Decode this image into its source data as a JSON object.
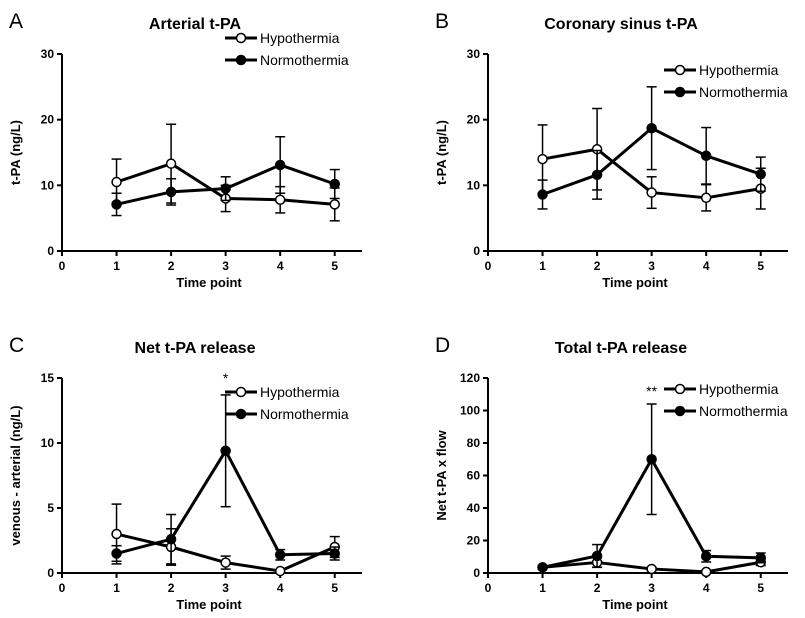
{
  "colors": {
    "hypothermia_marker": "#ffffff",
    "normothermia_marker": "#000000",
    "line": "#000000"
  },
  "legend_placement": "top-right",
  "chart_data": [
    {
      "panel": "A",
      "type": "line",
      "title": "Arterial t-PA",
      "xlabel": "Time point",
      "ylabel": "t-PA (ng/L)",
      "xlim": [
        0,
        5.5
      ],
      "ylim": [
        0,
        30
      ],
      "xticks": [
        0,
        1,
        2,
        3,
        4,
        5
      ],
      "yticks": [
        0,
        10,
        20,
        30
      ],
      "annotations": [],
      "series": [
        {
          "name": "Hypothermia",
          "marker": "open-circle",
          "x": [
            1,
            2,
            3,
            4,
            5
          ],
          "y": [
            10.5,
            13.3,
            8.0,
            7.8,
            7.1
          ],
          "err": [
            3.5,
            6.0,
            2.0,
            2.0,
            2.5
          ]
        },
        {
          "name": "Normothermia",
          "marker": "filled-circle",
          "x": [
            1,
            2,
            3,
            4,
            5
          ],
          "y": [
            7.1,
            9.0,
            9.5,
            13.1,
            10.2
          ],
          "err": [
            1.7,
            2.0,
            1.8,
            4.3,
            2.2
          ]
        }
      ]
    },
    {
      "panel": "B",
      "type": "line",
      "title": "Coronary sinus t-PA",
      "xlabel": "Time point",
      "ylabel": "t-PA (ng/L)",
      "xlim": [
        0,
        5.5
      ],
      "ylim": [
        0,
        30
      ],
      "xticks": [
        0,
        1,
        2,
        3,
        4,
        5
      ],
      "yticks": [
        0,
        10,
        20,
        30
      ],
      "annotations": [],
      "series": [
        {
          "name": "Hypothermia",
          "marker": "open-circle",
          "x": [
            1,
            2,
            3,
            4,
            5
          ],
          "y": [
            14.0,
            15.5,
            8.9,
            8.1,
            9.5
          ],
          "err": [
            5.2,
            6.2,
            2.4,
            2.0,
            3.1
          ]
        },
        {
          "name": "Normothermia",
          "marker": "filled-circle",
          "x": [
            1,
            2,
            3,
            4,
            5
          ],
          "y": [
            8.6,
            11.6,
            18.7,
            14.5,
            11.7
          ],
          "err": [
            2.2,
            3.7,
            6.3,
            4.3,
            2.6
          ]
        }
      ]
    },
    {
      "panel": "C",
      "type": "line",
      "title": "Net t-PA release",
      "xlabel": "Time point",
      "ylabel": "venous - arterial (ng/L)",
      "xlim": [
        0,
        5.5
      ],
      "ylim": [
        0,
        15
      ],
      "xticks": [
        0,
        1,
        2,
        3,
        4,
        5
      ],
      "yticks": [
        0,
        5,
        10,
        15
      ],
      "annotations": [
        {
          "x": 3,
          "y": 14.6,
          "text": "*"
        }
      ],
      "series": [
        {
          "name": "Hypothermia",
          "marker": "open-circle",
          "x": [
            1,
            2,
            3,
            4,
            5
          ],
          "y": [
            3.0,
            2.0,
            0.8,
            0.15,
            2.0
          ],
          "err": [
            2.3,
            1.4,
            0.5,
            0.1,
            0.8
          ]
        },
        {
          "name": "Normothermia",
          "marker": "filled-circle",
          "x": [
            1,
            2,
            3,
            4,
            5
          ],
          "y": [
            1.5,
            2.6,
            9.4,
            1.4,
            1.5
          ],
          "err": [
            0.6,
            1.9,
            4.3,
            0.4,
            0.5
          ]
        }
      ]
    },
    {
      "panel": "D",
      "type": "line",
      "title": "Total t-PA release",
      "xlabel": "Time point",
      "ylabel": "Net t-PA x flow",
      "xlim": [
        0,
        5.5
      ],
      "ylim": [
        0,
        120
      ],
      "xticks": [
        0,
        1,
        2,
        3,
        4,
        5
      ],
      "yticks": [
        0,
        20,
        40,
        60,
        80,
        100,
        120
      ],
      "annotations": [
        {
          "x": 3,
          "y": 109,
          "text": "**"
        }
      ],
      "series": [
        {
          "name": "Hypothermia",
          "marker": "open-circle",
          "x": [
            1,
            2,
            3,
            4,
            5
          ],
          "y": [
            3.5,
            6.5,
            2.5,
            0.7,
            6.6
          ],
          "err": [
            1.0,
            3.0,
            1.0,
            0.5,
            2.0
          ]
        },
        {
          "name": "Normothermia",
          "marker": "filled-circle",
          "x": [
            1,
            2,
            3,
            4,
            5
          ],
          "y": [
            3.5,
            10.5,
            70.0,
            10.3,
            9.3
          ],
          "err": [
            1.0,
            7.0,
            34.0,
            3.5,
            3.0
          ]
        }
      ]
    }
  ]
}
